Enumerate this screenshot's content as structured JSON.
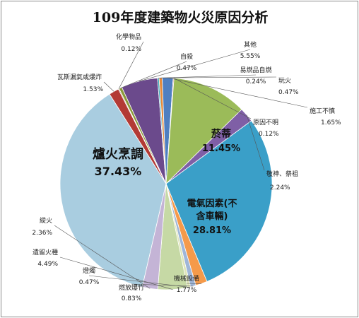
{
  "chart_data": {
    "type": "pie",
    "title": "109年度建築物火災原因分析",
    "slices": [
      {
        "name": "爐火烹調",
        "value": 37.43,
        "label": "37.43%",
        "color": "#a9cde0"
      },
      {
        "name": "瓦斯漏氣或爆炸",
        "value": 1.53,
        "label": "1.53%",
        "color": "#b33a35"
      },
      {
        "name": "化學物品",
        "value": 0.12,
        "label": "0.12%",
        "color": "#7d3a22"
      },
      {
        "name": "自殺",
        "value": 0.47,
        "label": "0.47%",
        "color": "#8a9a3a"
      },
      {
        "name": "其他",
        "value": 5.55,
        "label": "5.55%",
        "color": "#6b4a8c"
      },
      {
        "name": "易燃品自燃",
        "value": 0.24,
        "label": "0.24%",
        "color": "#2fa3b8"
      },
      {
        "name": "玩火",
        "value": 0.47,
        "label": "0.47%",
        "color": "#e58a3a"
      },
      {
        "name": "施工不慎",
        "value": 1.65,
        "label": "1.65%",
        "color": "#4f7fc1"
      },
      {
        "name": "原因不明",
        "value": 0.12,
        "label": "0.12%",
        "color": "#c0504d"
      },
      {
        "name": "菸蒂",
        "value": 11.45,
        "label": "11.45%",
        "color": "#9bbb59"
      },
      {
        "name": "敬神、祭祖",
        "value": 2.24,
        "label": "2.24%",
        "color": "#7f5fa6"
      },
      {
        "name": "電氣因素(不含車輛)",
        "value": 28.81,
        "label": "28.81%",
        "color": "#3a9fc8"
      },
      {
        "name": "機械設備",
        "value": 1.77,
        "label": "1.77%",
        "color": "#f59a4a"
      },
      {
        "name": "燃放爆竹",
        "value": 0.83,
        "label": "0.83%",
        "color": "#9fb6d8"
      },
      {
        "name": "燈燭",
        "value": 0.47,
        "label": "0.47%",
        "color": "#dfe5b8"
      },
      {
        "name": "遺留火種",
        "value": 4.49,
        "label": "4.49%",
        "color": "#c6d9a5"
      },
      {
        "name": "縱火",
        "value": 2.36,
        "label": "2.36%",
        "color": "#c4b4d6"
      }
    ],
    "inside_labels": [
      "爐火烹調",
      "菸蒂",
      "電氣因素(不",
      "含車輛)"
    ]
  }
}
